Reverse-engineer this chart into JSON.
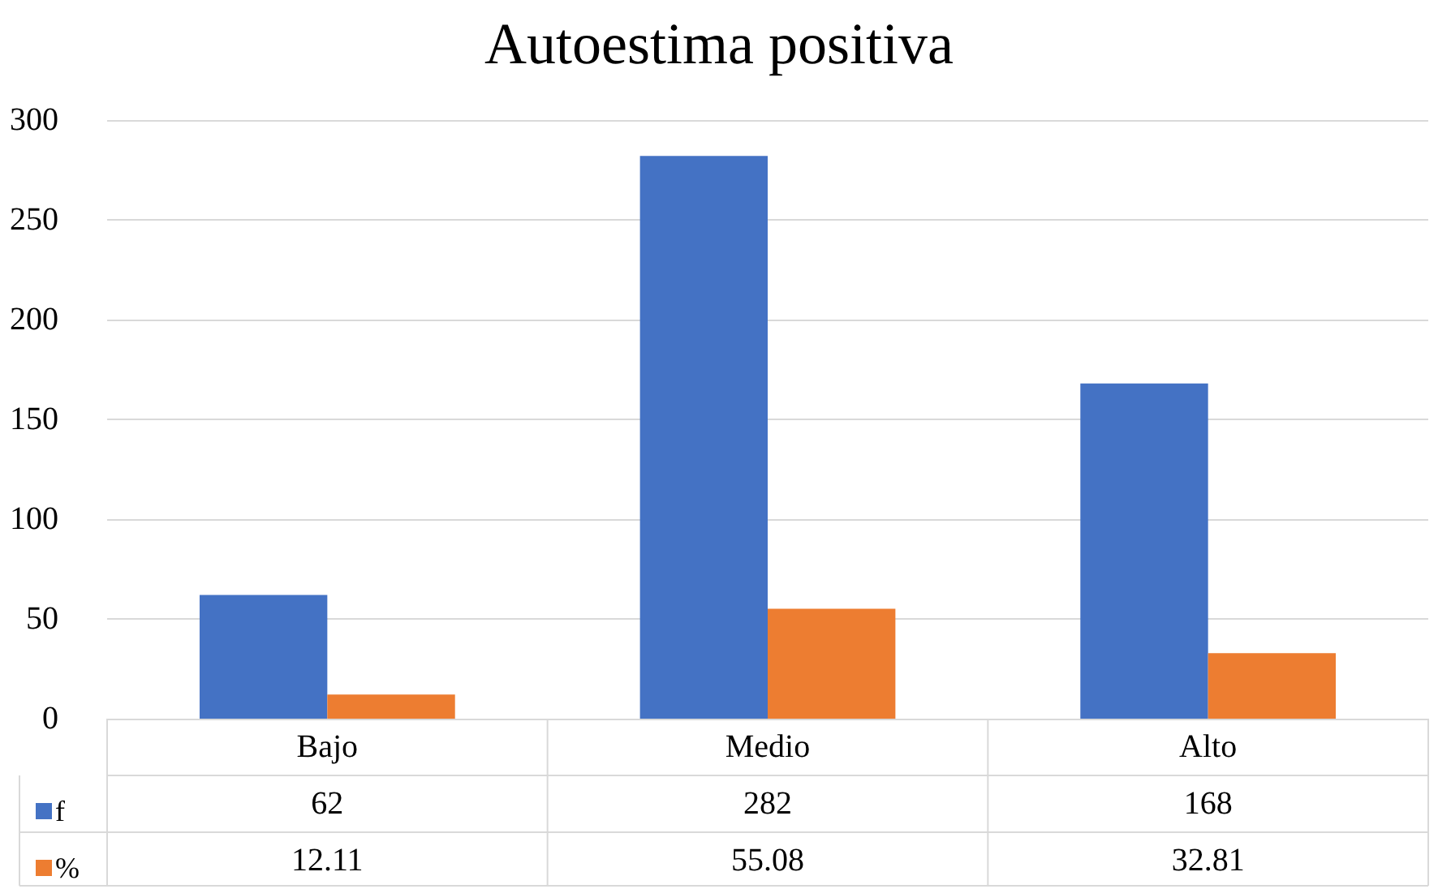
{
  "chart_data": {
    "type": "bar",
    "title": "Autoestima positiva",
    "categories": [
      "Bajo",
      "Medio",
      "Alto"
    ],
    "series": [
      {
        "name": "f",
        "color": "#4472c4",
        "values": [
          62,
          282,
          168
        ]
      },
      {
        "name": "%",
        "color": "#ed7d31",
        "values": [
          12.11,
          55.08,
          32.81
        ]
      }
    ],
    "ylim": [
      0,
      300
    ],
    "yticks": [
      0,
      50,
      100,
      150,
      200,
      250,
      300
    ],
    "grid": "y",
    "legend": "bottom",
    "data_labels": true
  }
}
